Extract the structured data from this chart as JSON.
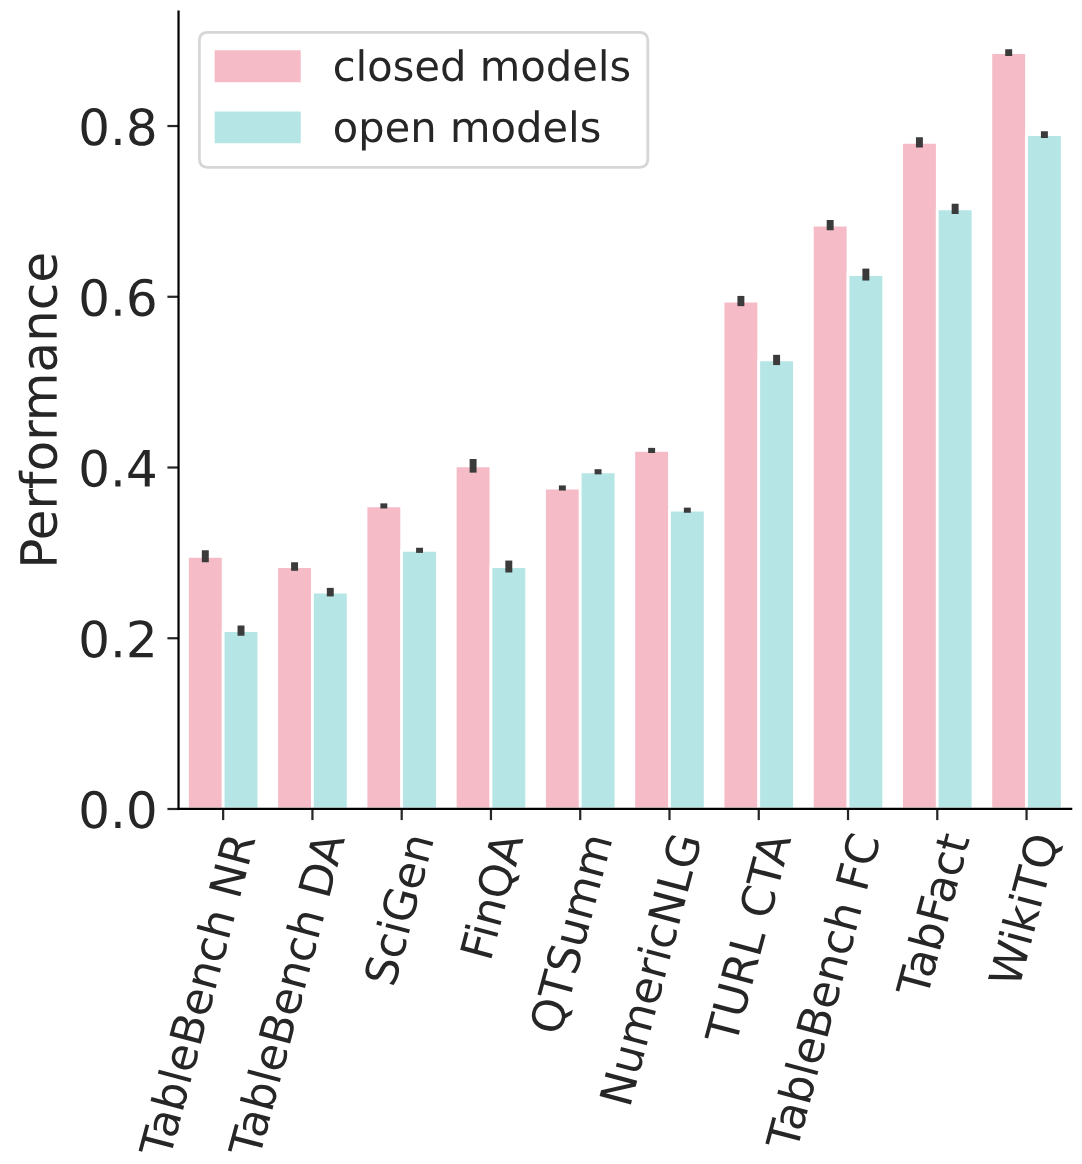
{
  "chart_data": {
    "type": "bar",
    "ylabel": "Performance",
    "categories": [
      "TableBench NR",
      "TableBench DA",
      "SciGen",
      "FinQA",
      "QTSumm",
      "NumericNLG",
      "TURL CTA",
      "TableBench FC",
      "TabFact",
      "WikiTQ"
    ],
    "series": [
      {
        "name": "closed models",
        "color": "#f5bcc7",
        "values": [
          0.296,
          0.284,
          0.355,
          0.402,
          0.376,
          0.42,
          0.595,
          0.684,
          0.781,
          0.886
        ],
        "errors": [
          0.007,
          0.005,
          0.003,
          0.008,
          0.003,
          0.003,
          0.006,
          0.006,
          0.006,
          0.004
        ]
      },
      {
        "name": "open models",
        "color": "#b5e5e4",
        "values": [
          0.209,
          0.254,
          0.303,
          0.284,
          0.395,
          0.35,
          0.526,
          0.626,
          0.703,
          0.79
        ],
        "errors": [
          0.006,
          0.005,
          0.003,
          0.007,
          0.003,
          0.003,
          0.006,
          0.007,
          0.006,
          0.004
        ]
      }
    ],
    "ylim": [
      0,
      0.934
    ],
    "yticks": [
      {
        "value": 0,
        "label": "0.0"
      },
      {
        "value": 0.2,
        "label": "0.2"
      },
      {
        "value": 0.4,
        "label": "0.4"
      },
      {
        "value": 0.6,
        "label": "0.6"
      },
      {
        "value": 0.8,
        "label": "0.8"
      }
    ],
    "grid": false,
    "legend": "top left"
  }
}
